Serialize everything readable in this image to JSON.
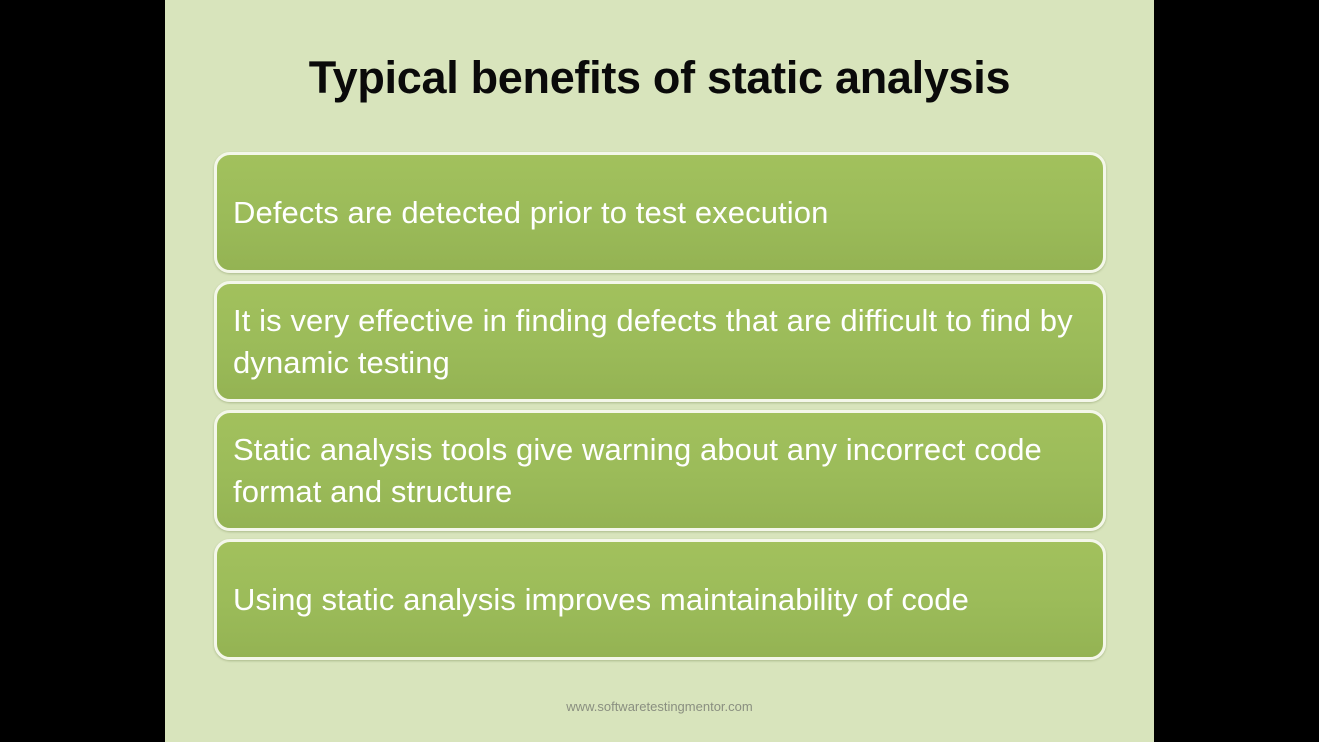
{
  "slide": {
    "title": "Typical benefits of static analysis",
    "items": [
      "Defects are detected prior to test execution",
      "It is very effective in finding defects that are difficult to find by dynamic testing",
      "Static analysis tools give warning about any incorrect code format and structure",
      "Using static analysis improves maintainability of code"
    ],
    "footer": "www.softwaretestingmentor.com"
  },
  "colors": {
    "background": "#d8e4bc",
    "box_fill": "#9bbb59",
    "box_border": "#f4f7ea",
    "letterbox": "#000000"
  }
}
